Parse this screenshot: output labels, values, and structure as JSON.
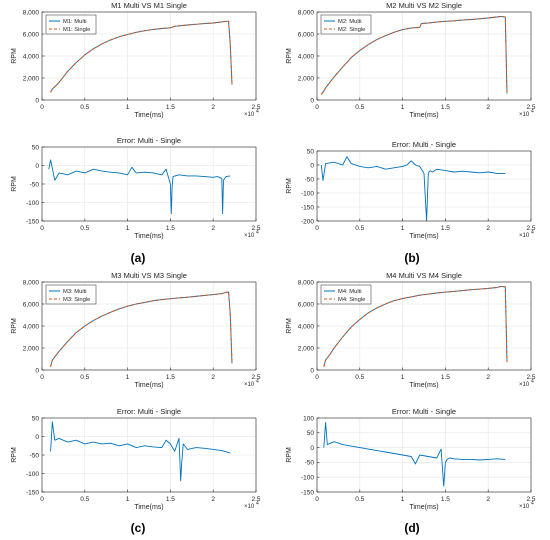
{
  "figure": {
    "panel_labels": [
      "(a)",
      "(b)",
      "(c)",
      "(d)"
    ]
  },
  "colors": {
    "multi": "#0072BD",
    "single": "#D95319",
    "axis": "#262626",
    "grid": "#e4e4e4"
  },
  "chart_data": [
    {
      "type": "line",
      "title": "M1 Multi VS M1 Single",
      "xlabel": "Time(ms)",
      "ylabel": "RPM",
      "x_multiplier": "×10",
      "x_multiplier_exp": "4",
      "xlim": [
        0,
        2.5
      ],
      "ylim": [
        0,
        8000
      ],
      "xticks": [
        0,
        0.5,
        1,
        1.5,
        2,
        2.5
      ],
      "xticklabels": [
        "0",
        "0.5",
        "1",
        "1.5",
        "2",
        "2.5"
      ],
      "yticks": [
        0,
        2000,
        4000,
        6000,
        8000
      ],
      "yticklabels": [
        "0",
        "2,000",
        "4,000",
        "6,000",
        "8,000"
      ],
      "grid": true,
      "legend": "top-left",
      "series": [
        {
          "name": "M1: Multi",
          "style": "solid",
          "x": [
            0.1,
            0.12,
            0.15,
            0.2,
            0.3,
            0.4,
            0.5,
            0.6,
            0.7,
            0.8,
            0.9,
            1.0,
            1.1,
            1.2,
            1.3,
            1.4,
            1.5,
            1.55,
            1.6,
            1.7,
            1.8,
            1.9,
            2.0,
            2.1,
            2.15,
            2.18,
            2.2,
            2.22
          ],
          "y": [
            700,
            1000,
            1200,
            1600,
            2600,
            3400,
            4100,
            4650,
            5100,
            5450,
            5750,
            5950,
            6150,
            6300,
            6420,
            6500,
            6560,
            6700,
            6750,
            6820,
            6880,
            6950,
            7000,
            7100,
            7150,
            7150,
            5000,
            1400
          ]
        },
        {
          "name": "M1: Single",
          "style": "dashed",
          "x": [
            0.1,
            0.12,
            0.15,
            0.2,
            0.3,
            0.4,
            0.5,
            0.6,
            0.7,
            0.8,
            0.9,
            1.0,
            1.1,
            1.2,
            1.3,
            1.4,
            1.5,
            1.55,
            1.6,
            1.7,
            1.8,
            1.9,
            2.0,
            2.1,
            2.15,
            2.18,
            2.2,
            2.22
          ],
          "y": [
            700,
            1000,
            1200,
            1600,
            2600,
            3400,
            4100,
            4650,
            5100,
            5450,
            5750,
            5950,
            6150,
            6300,
            6420,
            6500,
            6560,
            6700,
            6750,
            6820,
            6880,
            6950,
            7000,
            7100,
            7150,
            7150,
            5000,
            1400
          ]
        }
      ]
    },
    {
      "type": "line",
      "title": "Error: Multi - Single",
      "xlabel": "Time(ms)",
      "ylabel": "RPM",
      "x_multiplier": "×10",
      "x_multiplier_exp": "4",
      "xlim": [
        0,
        2.5
      ],
      "ylim": [
        -150,
        50
      ],
      "xticks": [
        0,
        0.5,
        1,
        1.5,
        2,
        2.5
      ],
      "xticklabels": [
        "0",
        "0.5",
        "1",
        "1.5",
        "2",
        "2.5"
      ],
      "yticks": [
        -150,
        -100,
        -50,
        0,
        50
      ],
      "yticklabels": [
        "-150",
        "-100",
        "-50",
        "0",
        "50"
      ],
      "grid": true,
      "series": [
        {
          "style": "solid",
          "x": [
            0.08,
            0.1,
            0.15,
            0.2,
            0.3,
            0.4,
            0.5,
            0.6,
            0.7,
            0.8,
            0.9,
            1.0,
            1.05,
            1.1,
            1.2,
            1.3,
            1.4,
            1.45,
            1.5,
            1.51,
            1.52,
            1.53,
            1.6,
            1.7,
            1.8,
            1.9,
            2.0,
            2.05,
            2.1,
            2.11,
            2.12,
            2.15,
            2.2
          ],
          "y": [
            -10,
            15,
            -40,
            -20,
            -25,
            -15,
            -20,
            -10,
            -15,
            -18,
            -20,
            -25,
            -5,
            -20,
            -18,
            -20,
            -25,
            -10,
            -50,
            -130,
            -60,
            -30,
            -25,
            -28,
            -28,
            -30,
            -32,
            -30,
            -35,
            -130,
            -40,
            -30,
            -28
          ]
        }
      ]
    },
    {
      "type": "line",
      "title": "M2 Multi VS M2 Single",
      "xlabel": "Time(ms)",
      "ylabel": "RPM",
      "x_multiplier": "×10",
      "x_multiplier_exp": "4",
      "xlim": [
        0,
        2.5
      ],
      "ylim": [
        0,
        8000
      ],
      "xticks": [
        0,
        0.5,
        1,
        1.5,
        2,
        2.5
      ],
      "xticklabels": [
        "0",
        "0.5",
        "1",
        "1.5",
        "2",
        "2.5"
      ],
      "yticks": [
        0,
        2000,
        4000,
        6000,
        8000
      ],
      "yticklabels": [
        "0",
        "2,000",
        "4,000",
        "6,000",
        "8,000"
      ],
      "grid": true,
      "legend": "top-left",
      "series": [
        {
          "name": "M2: Multi",
          "style": "solid",
          "x": [
            0.05,
            0.08,
            0.1,
            0.2,
            0.3,
            0.4,
            0.5,
            0.6,
            0.7,
            0.8,
            0.9,
            1.0,
            1.1,
            1.2,
            1.22,
            1.3,
            1.4,
            1.5,
            1.6,
            1.7,
            1.8,
            1.9,
            2.0,
            2.1,
            2.15,
            2.2,
            2.22
          ],
          "y": [
            500,
            800,
            1100,
            2100,
            3000,
            3850,
            4500,
            5050,
            5500,
            5850,
            6150,
            6400,
            6550,
            6600,
            6950,
            7000,
            7080,
            7150,
            7200,
            7260,
            7320,
            7380,
            7450,
            7550,
            7600,
            7550,
            600
          ]
        },
        {
          "name": "M2: Single",
          "style": "dashed",
          "x": [
            0.05,
            0.08,
            0.1,
            0.2,
            0.3,
            0.4,
            0.5,
            0.6,
            0.7,
            0.8,
            0.9,
            1.0,
            1.1,
            1.2,
            1.22,
            1.3,
            1.4,
            1.5,
            1.6,
            1.7,
            1.8,
            1.9,
            2.0,
            2.1,
            2.15,
            2.2,
            2.22
          ],
          "y": [
            500,
            800,
            1100,
            2100,
            3000,
            3850,
            4500,
            5050,
            5500,
            5850,
            6150,
            6400,
            6550,
            6600,
            6950,
            7000,
            7080,
            7150,
            7200,
            7260,
            7320,
            7380,
            7450,
            7550,
            7600,
            7550,
            600
          ]
        }
      ]
    },
    {
      "type": "line",
      "title": "Error: Multi - Single",
      "xlabel": "Time(ms)",
      "ylabel": "RPM",
      "x_multiplier": "×10",
      "x_multiplier_exp": "4",
      "xlim": [
        0,
        2.5
      ],
      "ylim": [
        -200,
        50
      ],
      "xticks": [
        0,
        0.5,
        1,
        1.5,
        2,
        2.5
      ],
      "xticklabels": [
        "0",
        "0.5",
        "1",
        "1.5",
        "2",
        "2.5"
      ],
      "yticks": [
        -200,
        -150,
        -100,
        -50,
        0,
        50
      ],
      "yticklabels": [
        "-200",
        "-150",
        "-100",
        "-50",
        "0",
        "50"
      ],
      "grid": true,
      "series": [
        {
          "style": "solid",
          "x": [
            0.05,
            0.07,
            0.1,
            0.2,
            0.3,
            0.35,
            0.4,
            0.5,
            0.6,
            0.7,
            0.8,
            0.9,
            1.0,
            1.05,
            1.1,
            1.15,
            1.2,
            1.25,
            1.28,
            1.3,
            1.32,
            1.35,
            1.4,
            1.5,
            1.6,
            1.7,
            1.8,
            1.9,
            2.0,
            2.1,
            2.2
          ],
          "y": [
            0,
            -55,
            5,
            10,
            0,
            30,
            5,
            -5,
            -10,
            -5,
            -15,
            -10,
            -5,
            0,
            15,
            0,
            -5,
            -30,
            -200,
            -30,
            -20,
            -25,
            -15,
            -20,
            -25,
            -22,
            -25,
            -28,
            -25,
            -30,
            -30
          ]
        }
      ]
    },
    {
      "type": "line",
      "title": "M3 Multi VS M3 Single",
      "xlabel": "Time(ms)",
      "ylabel": "RPM",
      "x_multiplier": "×10",
      "x_multiplier_exp": "4",
      "xlim": [
        0,
        2.5
      ],
      "ylim": [
        0,
        8000
      ],
      "xticks": [
        0,
        0.5,
        1,
        1.5,
        2,
        2.5
      ],
      "xticklabels": [
        "0",
        "0.5",
        "1",
        "1.5",
        "2",
        "2.5"
      ],
      "yticks": [
        0,
        2000,
        4000,
        6000,
        8000
      ],
      "yticklabels": [
        "0",
        "2,000",
        "4,000",
        "6,000",
        "8,000"
      ],
      "grid": true,
      "legend": "top-left",
      "series": [
        {
          "name": "M3: Multi",
          "style": "solid",
          "x": [
            0.1,
            0.12,
            0.15,
            0.2,
            0.3,
            0.4,
            0.5,
            0.6,
            0.7,
            0.8,
            0.9,
            1.0,
            1.1,
            1.2,
            1.3,
            1.4,
            1.5,
            1.6,
            1.7,
            1.8,
            1.9,
            2.0,
            2.1,
            2.15,
            2.18,
            2.2,
            2.22
          ],
          "y": [
            300,
            900,
            1200,
            1700,
            2600,
            3400,
            4000,
            4500,
            4900,
            5250,
            5550,
            5800,
            6000,
            6150,
            6300,
            6400,
            6480,
            6550,
            6620,
            6700,
            6780,
            6850,
            6950,
            7050,
            7100,
            5000,
            600
          ]
        },
        {
          "name": "M3: Single",
          "style": "dashed",
          "x": [
            0.1,
            0.12,
            0.15,
            0.2,
            0.3,
            0.4,
            0.5,
            0.6,
            0.7,
            0.8,
            0.9,
            1.0,
            1.1,
            1.2,
            1.3,
            1.4,
            1.5,
            1.6,
            1.7,
            1.8,
            1.9,
            2.0,
            2.1,
            2.15,
            2.18,
            2.2,
            2.22
          ],
          "y": [
            300,
            900,
            1200,
            1700,
            2600,
            3400,
            4000,
            4500,
            4900,
            5250,
            5550,
            5800,
            6000,
            6150,
            6300,
            6400,
            6480,
            6550,
            6620,
            6700,
            6780,
            6850,
            6950,
            7050,
            7100,
            5000,
            600
          ]
        }
      ]
    },
    {
      "type": "line",
      "title": "Error: Multi - Single",
      "xlabel": "Time(ms)",
      "ylabel": "RPM",
      "x_multiplier": "×10",
      "x_multiplier_exp": "4",
      "xlim": [
        0,
        2.5
      ],
      "ylim": [
        -150,
        50
      ],
      "xticks": [
        0,
        0.5,
        1,
        1.5,
        2,
        2.5
      ],
      "xticklabels": [
        "0",
        "0.5",
        "1",
        "1.5",
        "2",
        "2.5"
      ],
      "yticks": [
        -150,
        -100,
        -50,
        0,
        50
      ],
      "yticklabels": [
        "-150",
        "-100",
        "-50",
        "0",
        "50"
      ],
      "grid": true,
      "series": [
        {
          "style": "solid",
          "x": [
            0.1,
            0.12,
            0.15,
            0.2,
            0.3,
            0.4,
            0.5,
            0.6,
            0.7,
            0.8,
            0.9,
            1.0,
            1.1,
            1.2,
            1.3,
            1.4,
            1.45,
            1.5,
            1.55,
            1.6,
            1.62,
            1.63,
            1.65,
            1.7,
            1.8,
            1.9,
            2.0,
            2.1,
            2.2
          ],
          "y": [
            -40,
            40,
            -10,
            -5,
            -15,
            -10,
            -20,
            -15,
            -20,
            -18,
            -25,
            -20,
            -30,
            -25,
            -28,
            -30,
            -10,
            -20,
            -40,
            -5,
            -120,
            -80,
            -20,
            -35,
            -30,
            -32,
            -35,
            -38,
            -45
          ]
        }
      ]
    },
    {
      "type": "line",
      "title": "M4 Multi VS M4 Single",
      "xlabel": "Time(ms)",
      "ylabel": "RPM",
      "x_multiplier": "×10",
      "x_multiplier_exp": "4",
      "xlim": [
        0,
        2.5
      ],
      "ylim": [
        0,
        8000
      ],
      "xticks": [
        0,
        0.5,
        1,
        1.5,
        2,
        2.5
      ],
      "xticklabels": [
        "0",
        "0.5",
        "1",
        "1.5",
        "2",
        "2.5"
      ],
      "yticks": [
        0,
        2000,
        4000,
        6000,
        8000
      ],
      "yticklabels": [
        "0",
        "2,000",
        "4,000",
        "6,000",
        "8,000"
      ],
      "grid": true,
      "legend": "top-left",
      "series": [
        {
          "name": "M4: Multi",
          "style": "solid",
          "x": [
            0.08,
            0.1,
            0.15,
            0.2,
            0.3,
            0.4,
            0.5,
            0.6,
            0.7,
            0.8,
            0.9,
            1.0,
            1.1,
            1.2,
            1.3,
            1.4,
            1.5,
            1.6,
            1.7,
            1.8,
            1.9,
            2.0,
            2.1,
            2.15,
            2.2,
            2.22
          ],
          "y": [
            300,
            900,
            1400,
            2000,
            3000,
            3900,
            4600,
            5200,
            5650,
            6000,
            6300,
            6500,
            6650,
            6800,
            6900,
            7000,
            7080,
            7150,
            7220,
            7300,
            7350,
            7420,
            7500,
            7600,
            7550,
            700
          ]
        },
        {
          "name": "M4: Single",
          "style": "dashed",
          "x": [
            0.08,
            0.1,
            0.15,
            0.2,
            0.3,
            0.4,
            0.5,
            0.6,
            0.7,
            0.8,
            0.9,
            1.0,
            1.1,
            1.2,
            1.3,
            1.4,
            1.5,
            1.6,
            1.7,
            1.8,
            1.9,
            2.0,
            2.1,
            2.15,
            2.2,
            2.22
          ],
          "y": [
            300,
            900,
            1400,
            2000,
            3000,
            3900,
            4600,
            5200,
            5650,
            6000,
            6300,
            6500,
            6650,
            6800,
            6900,
            7000,
            7080,
            7150,
            7220,
            7300,
            7350,
            7420,
            7500,
            7600,
            7550,
            700
          ]
        }
      ]
    },
    {
      "type": "line",
      "title": "Error: Multi - Single",
      "xlabel": "Time(ms)",
      "ylabel": "RPM",
      "x_multiplier": "×10",
      "x_multiplier_exp": "4",
      "xlim": [
        0,
        2.5
      ],
      "ylim": [
        -150,
        100
      ],
      "xticks": [
        0,
        0.5,
        1,
        1.5,
        2,
        2.5
      ],
      "xticklabels": [
        "0",
        "0.5",
        "1",
        "1.5",
        "2",
        "2.5"
      ],
      "yticks": [
        -150,
        -100,
        -50,
        0,
        50,
        100
      ],
      "yticklabels": [
        "-150",
        "-100",
        "-50",
        "0",
        "50",
        "100"
      ],
      "grid": true,
      "series": [
        {
          "style": "solid",
          "x": [
            0.08,
            0.1,
            0.12,
            0.2,
            0.3,
            0.4,
            0.5,
            0.6,
            0.7,
            0.8,
            0.9,
            1.0,
            1.1,
            1.15,
            1.2,
            1.3,
            1.4,
            1.45,
            1.48,
            1.5,
            1.52,
            1.55,
            1.6,
            1.7,
            1.8,
            1.9,
            2.0,
            2.1,
            2.2
          ],
          "y": [
            0,
            85,
            10,
            20,
            10,
            5,
            0,
            -5,
            -10,
            -15,
            -20,
            -25,
            -30,
            -55,
            -25,
            -30,
            -35,
            -5,
            -130,
            -50,
            -40,
            -35,
            -38,
            -40,
            -40,
            -42,
            -40,
            -38,
            -40
          ]
        }
      ]
    }
  ]
}
